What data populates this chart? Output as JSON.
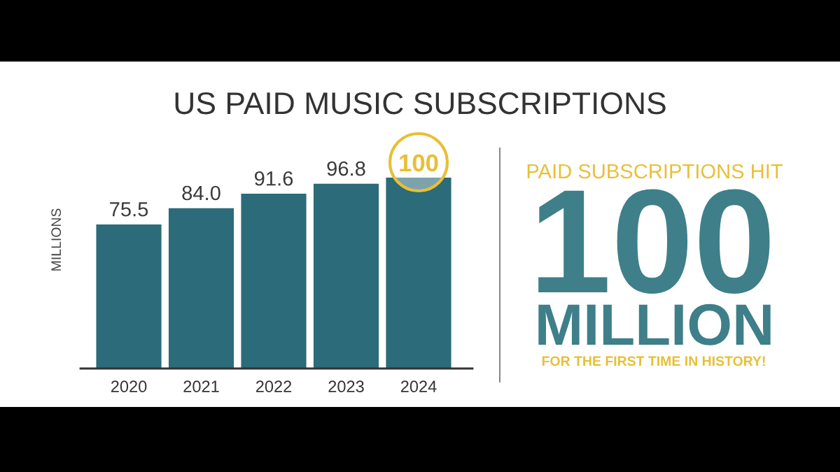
{
  "chart_data": [
    {
      "type": "bar",
      "title": "US PAID MUSIC SUBSCRIPTIONS",
      "ylabel": "MILLIONS",
      "categories": [
        "2020",
        "2021",
        "2022",
        "2023",
        "2024"
      ],
      "values": [
        75.5,
        84.0,
        91.6,
        96.8,
        100
      ],
      "color": "#2c6b79",
      "value_labels": [
        "75.5",
        "84.0",
        "91.6",
        "96.8",
        null
      ],
      "annotations": [
        {
          "text": "100",
          "x": "2024",
          "y": 100
        }
      ],
      "ylim": [
        0,
        100
      ],
      "tick_labels": "x"
    },
    {
      "type": "other",
      "annotations": [
        "PAID SUBSCRIPTIONS HIT",
        "100",
        "MILLION",
        "FOR THE FIRST TIME IN HISTORY!"
      ]
    }
  ]
}
